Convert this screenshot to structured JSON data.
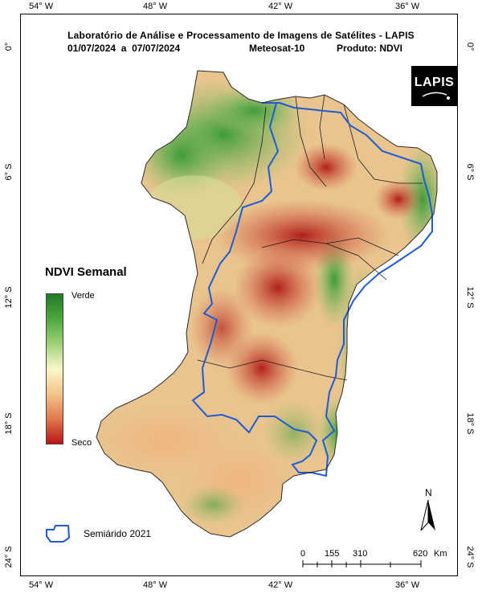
{
  "header": {
    "line1": "Laboratório de Análise e Processamento de Imagens de Satélites - LAPIS",
    "period": "01/07/2024  a  07/07/2024",
    "satellite": "Meteosat-10",
    "product": "Produto: NDVI"
  },
  "axes": {
    "lon_top": [
      "54° W",
      "48° W",
      "42° W",
      "36° W"
    ],
    "lon_bottom": [
      "54° W",
      "48° W",
      "42° W",
      "36° W"
    ],
    "lat_left": [
      "0°",
      "6° S",
      "12° S",
      "18° S",
      "24° S"
    ],
    "lat_right": [
      "0°",
      "6° S",
      "12° S",
      "18° S",
      "24° S"
    ]
  },
  "legend": {
    "title": "NDVI Semanal",
    "top_label": "Verde",
    "bottom_label": "Seco",
    "colors": [
      "#1f7a2a",
      "#4fa83d",
      "#9fd27a",
      "#fbf6c8",
      "#f3c48c",
      "#e07a4e",
      "#b81414"
    ],
    "semiarid_label": "Semiárido 2021",
    "semiarid_color": "#1e5bd8"
  },
  "logo": {
    "text": "LAPIS"
  },
  "north": {
    "label": "N"
  },
  "scale": {
    "ticks": [
      "0",
      "155",
      "310",
      "620"
    ],
    "unit": "Km"
  }
}
